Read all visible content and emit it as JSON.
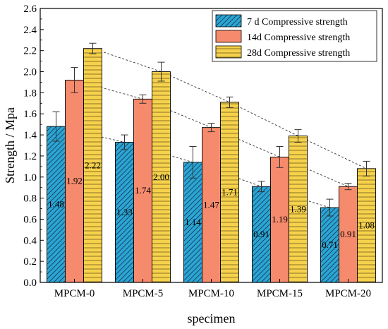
{
  "chart_data": {
    "type": "bar",
    "title": "",
    "xlabel": "specimen",
    "ylabel": "Strength / Mpa",
    "ylim": [
      0,
      2.6
    ],
    "yticks": [
      "0.0",
      "0.2",
      "0.4",
      "0.6",
      "0.8",
      "1.0",
      "1.2",
      "1.4",
      "1.6",
      "1.8",
      "2.0",
      "2.2",
      "2.4",
      "2.6"
    ],
    "categories": [
      "MPCM-0",
      "MPCM-5",
      "MPCM-10",
      "MPCM-15",
      "MPCM-20"
    ],
    "legend_position": "top-right",
    "grid": false,
    "series": [
      {
        "name": "7 d Compressive strength",
        "color": "#2aa6d4",
        "pattern": "diagonal-hatch",
        "values": [
          1.48,
          1.33,
          1.14,
          0.91,
          0.71
        ],
        "labels": [
          "1.48",
          "1.33",
          "1.14",
          "0.91",
          "0.71"
        ],
        "errors": [
          0.14,
          0.07,
          0.15,
          0.05,
          0.08
        ]
      },
      {
        "name": "14d Compressive strength",
        "color": "#f58a6c",
        "pattern": "solid",
        "values": [
          1.92,
          1.74,
          1.47,
          1.19,
          0.91
        ],
        "labels": [
          "1.92",
          "1.74",
          "1.47",
          "1.19",
          "0.91"
        ],
        "errors": [
          0.12,
          0.04,
          0.04,
          0.1,
          0.03
        ]
      },
      {
        "name": "28d Compressive strength",
        "color": "#f6d24c",
        "pattern": "horizontal-hatch",
        "values": [
          2.22,
          2.0,
          1.71,
          1.39,
          1.08
        ],
        "labels": [
          "2.22",
          "2.00",
          "1.71",
          "1.39",
          "1.08"
        ],
        "errors": [
          0.05,
          0.09,
          0.05,
          0.06,
          0.07
        ]
      }
    ],
    "trend_lines": [
      "dashed line through 7 d bar tops",
      "dashed line through 14d bar tops",
      "dashed line through 28d bar tops"
    ]
  }
}
